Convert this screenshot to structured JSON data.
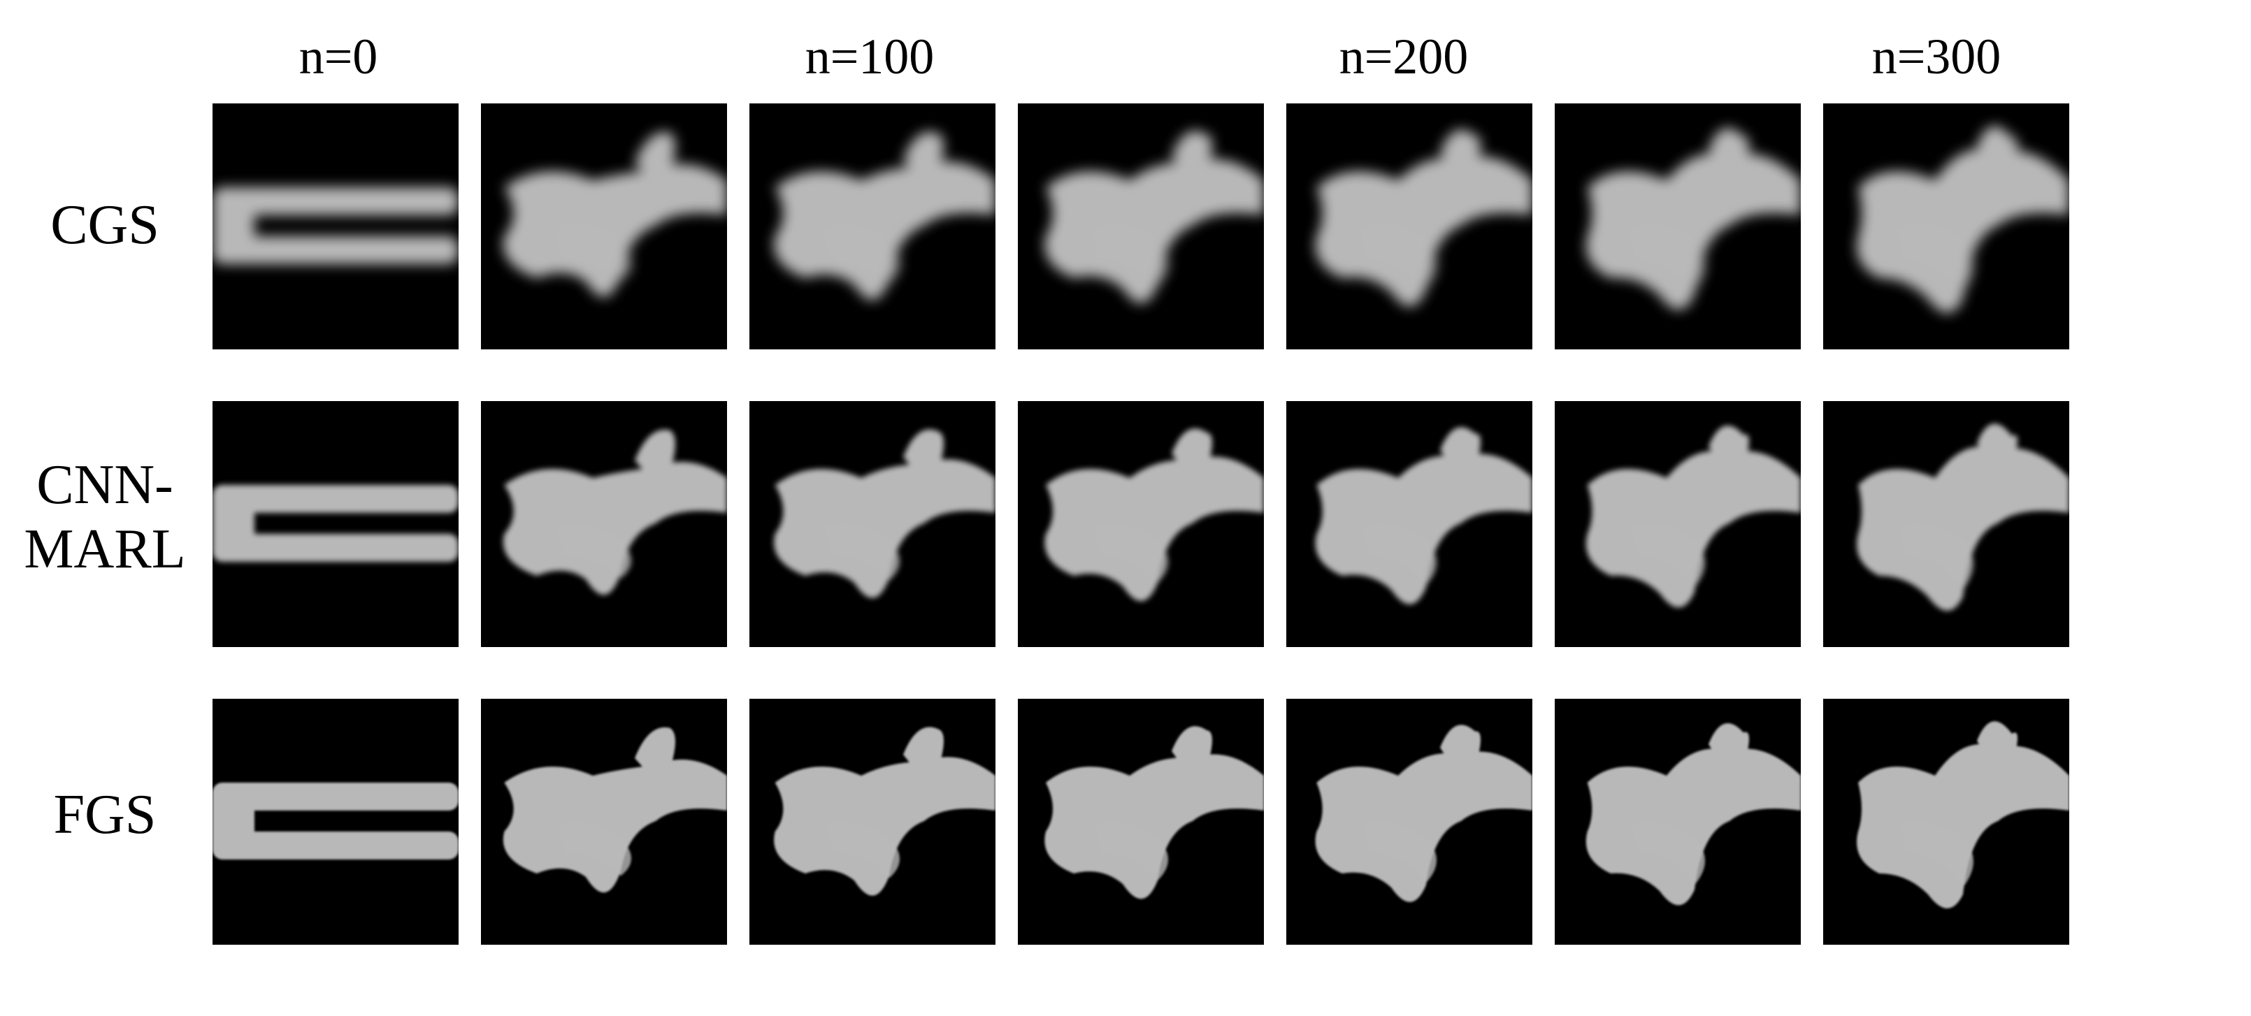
{
  "figure": {
    "column_headers": [
      {
        "label": "n=0"
      },
      {
        "label": "n=100"
      },
      {
        "label": "n=200"
      },
      {
        "label": "n=300"
      }
    ],
    "rows": [
      {
        "label": "CGS",
        "style": "blurry",
        "panels": 7
      },
      {
        "label": "CNN-\nMARL",
        "style": "medium",
        "panels": 7
      },
      {
        "label": "FGS",
        "style": "sharp",
        "panels": 7
      }
    ],
    "colors": {
      "background": "#ffffff",
      "panel_background": "#000000",
      "smoke": "#d9d9d9"
    }
  }
}
